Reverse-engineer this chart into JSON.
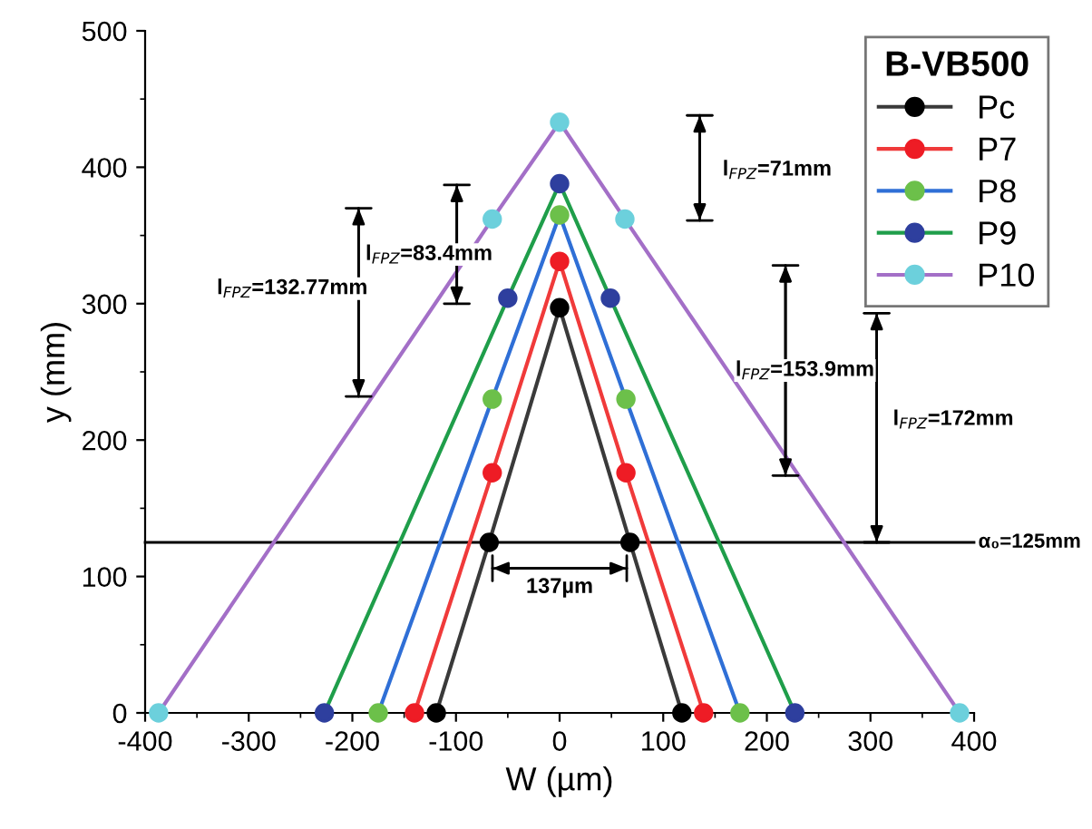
{
  "chart_data": {
    "type": "line",
    "xlabel": "W (µm)",
    "ylabel": "y (mm)",
    "xlim": [
      -400,
      400
    ],
    "xticks": [
      -400,
      -300,
      -200,
      -100,
      0,
      100,
      200,
      300,
      400
    ],
    "ylim": [
      0,
      500
    ],
    "yticks": [
      0,
      100,
      200,
      300,
      400,
      500
    ],
    "grid": false,
    "legend": "top right",
    "legend_title": "B-VB500",
    "marker": "circle",
    "line_style": "solid",
    "series": [
      {
        "name": "Pc",
        "color": "#3a3a3a",
        "colors": [
          "#000000",
          "#000000",
          "#000000",
          "#000000",
          "#000000"
        ],
        "x": [
          -119,
          -68,
          0,
          68,
          118
        ],
        "values": [
          0,
          125,
          297,
          125,
          0
        ]
      },
      {
        "name": "P7",
        "color": "#f03a3a",
        "colors": [
          "#ee1c25",
          "#ee1c25",
          "#ee1c25",
          "#ee1c25",
          "#ee1c25"
        ],
        "x": [
          -140,
          -65,
          0,
          64,
          139
        ],
        "values": [
          0,
          176,
          331,
          176,
          0
        ]
      },
      {
        "name": "P8",
        "color": "#2f6fd6",
        "colors": [
          "#6cc04a",
          "#6cc04a",
          "#6cc04a",
          "#6cc04a",
          "#6cc04a"
        ],
        "x": [
          -175,
          -65,
          0,
          64,
          174
        ],
        "values": [
          0,
          230,
          365,
          230,
          0
        ]
      },
      {
        "name": "P9",
        "color": "#1f9e4a",
        "colors": [
          "#2e3f9e",
          "#2e3f9e",
          "#2e3f9e",
          "#2e3f9e",
          "#2e3f9e"
        ],
        "x": [
          -227,
          -50,
          0,
          49,
          227
        ],
        "values": [
          0,
          304,
          388,
          304,
          0
        ]
      },
      {
        "name": "P10",
        "color": "#a36fc7",
        "colors": [
          "#6cd0dc",
          "#6cd0dc",
          "#6cd0dc",
          "#6cd0dc",
          "#6cd0dc"
        ],
        "x": [
          -387,
          -65,
          0,
          63,
          386
        ],
        "values": [
          0,
          362,
          433,
          362,
          0
        ]
      }
    ],
    "ref_lines": [
      {
        "axis": "y",
        "value": 125,
        "label": "α₀=125mm",
        "color": "#000000"
      }
    ],
    "annotations": [
      "l$_{FPZ}$=132.77mm",
      "l$_{FPZ}$=83.4mm",
      "l$_{FPZ}$=71mm",
      "l$_{FPZ}$=153.9mm",
      "l$_{FPZ}$=172mm",
      "137µm"
    ]
  }
}
